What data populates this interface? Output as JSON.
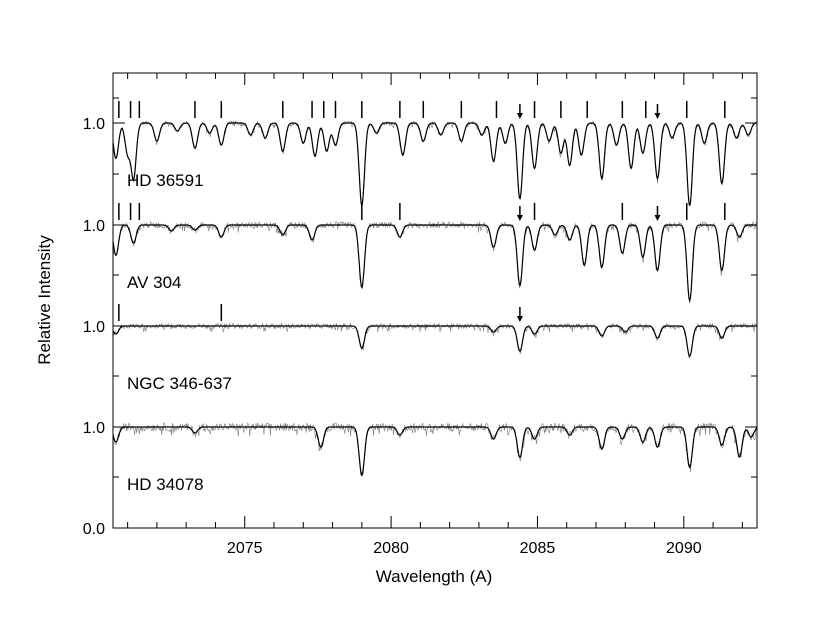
{
  "chart_data": {
    "type": "line",
    "xlabel": "Wavelength (A)",
    "ylabel": "Relative Intensity",
    "xlim": [
      2070.5,
      2092.5
    ],
    "x_ticks": [
      2075,
      2080,
      2085,
      2090
    ],
    "x_tick_labels": [
      "2075",
      "2080",
      "2085",
      "2090"
    ],
    "y_tick_labels": [
      "0.0",
      "1.0",
      "1.0",
      "1.0",
      "1.0"
    ],
    "series": [
      {
        "name": "HD 36591",
        "label": "HD 36591",
        "continuum_label": "1.0",
        "offset": 3.0,
        "noise": 0.02,
        "lines": [
          [
            2070.6,
            0.35
          ],
          [
            2071.0,
            0.3
          ],
          [
            2071.2,
            0.55
          ],
          [
            2072.0,
            0.18
          ],
          [
            2072.7,
            0.08
          ],
          [
            2073.3,
            0.25
          ],
          [
            2073.8,
            0.1
          ],
          [
            2074.2,
            0.22
          ],
          [
            2075.2,
            0.12
          ],
          [
            2075.7,
            0.15
          ],
          [
            2076.3,
            0.28
          ],
          [
            2077.0,
            0.2
          ],
          [
            2077.4,
            0.33
          ],
          [
            2077.8,
            0.28
          ],
          [
            2078.1,
            0.22
          ],
          [
            2079.0,
            0.82
          ],
          [
            2079.5,
            0.1
          ],
          [
            2080.4,
            0.32
          ],
          [
            2081.1,
            0.18
          ],
          [
            2081.7,
            0.12
          ],
          [
            2082.4,
            0.18
          ],
          [
            2083.1,
            0.12
          ],
          [
            2083.5,
            0.38
          ],
          [
            2083.9,
            0.2
          ],
          [
            2084.4,
            0.75
          ],
          [
            2084.9,
            0.45
          ],
          [
            2085.4,
            0.18
          ],
          [
            2085.8,
            0.3
          ],
          [
            2086.1,
            0.42
          ],
          [
            2086.5,
            0.32
          ],
          [
            2087.2,
            0.55
          ],
          [
            2087.7,
            0.22
          ],
          [
            2088.2,
            0.45
          ],
          [
            2088.6,
            0.3
          ],
          [
            2089.1,
            0.55
          ],
          [
            2089.6,
            0.15
          ],
          [
            2090.2,
            0.82
          ],
          [
            2090.7,
            0.2
          ],
          [
            2091.3,
            0.6
          ],
          [
            2091.8,
            0.15
          ],
          [
            2092.2,
            0.12
          ]
        ],
        "markers": [
          2070.7,
          2071.1,
          2071.4,
          2073.3,
          2074.2,
          2076.3,
          2077.3,
          2077.7,
          2078.1,
          2079.0,
          2080.3,
          2081.1,
          2082.4,
          2083.6,
          2084.9,
          2085.8,
          2086.7,
          2087.9,
          2088.7,
          2090.1,
          2091.4
        ],
        "arrows": [
          2084.4,
          2089.1
        ]
      },
      {
        "name": "AV 304",
        "label": "AV 304",
        "continuum_label": "1.0",
        "offset": 2.0,
        "noise": 0.03,
        "lines": [
          [
            2070.6,
            0.3
          ],
          [
            2071.2,
            0.18
          ],
          [
            2072.5,
            0.06
          ],
          [
            2073.3,
            0.05
          ],
          [
            2074.2,
            0.12
          ],
          [
            2076.3,
            0.1
          ],
          [
            2077.3,
            0.15
          ],
          [
            2079.0,
            0.62
          ],
          [
            2080.3,
            0.12
          ],
          [
            2083.5,
            0.22
          ],
          [
            2084.4,
            0.6
          ],
          [
            2084.9,
            0.25
          ],
          [
            2085.6,
            0.1
          ],
          [
            2086.1,
            0.15
          ],
          [
            2086.6,
            0.4
          ],
          [
            2087.2,
            0.42
          ],
          [
            2087.9,
            0.28
          ],
          [
            2088.6,
            0.32
          ],
          [
            2089.1,
            0.45
          ],
          [
            2090.2,
            0.75
          ],
          [
            2091.3,
            0.45
          ],
          [
            2091.9,
            0.12
          ]
        ],
        "markers": [
          2070.7,
          2071.1,
          2071.4,
          2079.0,
          2080.3,
          2084.9,
          2087.9,
          2090.1,
          2091.4
        ],
        "arrows": [
          2084.4,
          2089.1
        ]
      },
      {
        "name": "NGC 346-637",
        "label": "NGC 346-637",
        "continuum_label": "1.0",
        "offset": 1.0,
        "noise": 0.025,
        "lines": [
          [
            2070.6,
            0.08
          ],
          [
            2079.0,
            0.22
          ],
          [
            2083.5,
            0.06
          ],
          [
            2084.4,
            0.25
          ],
          [
            2084.9,
            0.08
          ],
          [
            2087.2,
            0.1
          ],
          [
            2088.0,
            0.06
          ],
          [
            2089.1,
            0.12
          ],
          [
            2090.2,
            0.3
          ],
          [
            2091.3,
            0.12
          ]
        ],
        "markers": [
          2070.7,
          2074.2
        ],
        "arrows": [
          2084.4
        ]
      },
      {
        "name": "HD 34078",
        "label": "HD 34078",
        "continuum_label": "1.0",
        "offset": 0.0,
        "noise": 0.04,
        "lines": [
          [
            2070.6,
            0.15
          ],
          [
            2073.3,
            0.06
          ],
          [
            2077.6,
            0.2
          ],
          [
            2079.0,
            0.48
          ],
          [
            2080.3,
            0.08
          ],
          [
            2083.5,
            0.12
          ],
          [
            2084.4,
            0.3
          ],
          [
            2084.9,
            0.12
          ],
          [
            2086.1,
            0.08
          ],
          [
            2087.2,
            0.22
          ],
          [
            2087.9,
            0.12
          ],
          [
            2088.6,
            0.15
          ],
          [
            2089.1,
            0.2
          ],
          [
            2090.2,
            0.4
          ],
          [
            2091.3,
            0.18
          ],
          [
            2091.9,
            0.3
          ],
          [
            2092.3,
            0.1
          ]
        ],
        "markers": [],
        "arrows": []
      }
    ],
    "grid": false,
    "legend": "none"
  }
}
